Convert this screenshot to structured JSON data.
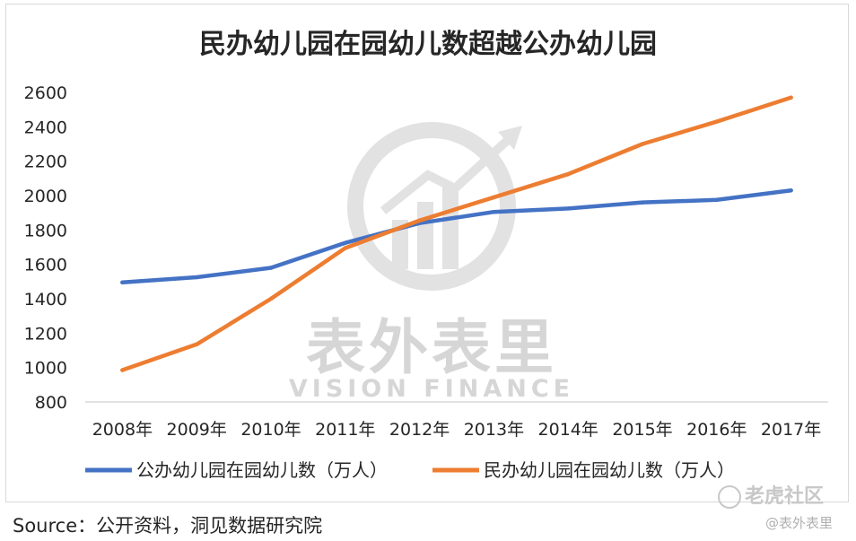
{
  "chart_data": {
    "type": "line",
    "title": "民办幼儿园在园幼儿数超越公办幼儿园",
    "categories": [
      "2008年",
      "2009年",
      "2010年",
      "2011年",
      "2012年",
      "2013年",
      "2014年",
      "2015年",
      "2016年",
      "2017年"
    ],
    "y_ticks": [
      "800",
      "1000",
      "1200",
      "1400",
      "1600",
      "1800",
      "2000",
      "2200",
      "2400",
      "2600"
    ],
    "ylim": [
      800,
      2600
    ],
    "grid": false,
    "legend_position": "bottom",
    "series": [
      {
        "name": "公办幼儿园在园幼儿数（万人）",
        "color": "#4472C4",
        "values": [
          1495,
          1525,
          1580,
          1725,
          1840,
          1905,
          1925,
          1960,
          1975,
          2030
        ]
      },
      {
        "name": "民办幼儿园在园幼儿数（万人）",
        "color": "#ED7D31",
        "values": [
          985,
          1135,
          1400,
          1695,
          1855,
          1990,
          2125,
          2300,
          2430,
          2570
        ]
      }
    ]
  },
  "watermark": {
    "cn": "表外表里",
    "en": "VISION FINANCE"
  },
  "source": "Source：公开资料，洞见数据研究院",
  "corner_watermark": "老虎社区",
  "author_watermark": "@表外表里"
}
